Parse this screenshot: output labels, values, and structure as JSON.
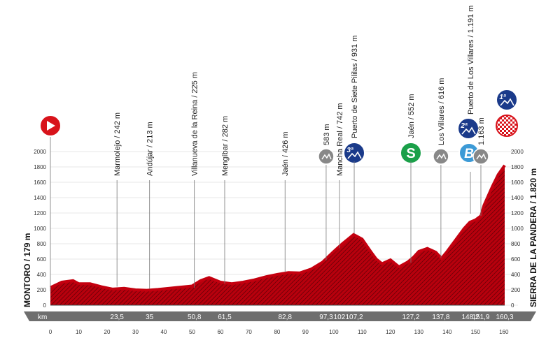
{
  "chart_data": {
    "type": "area",
    "start_label": "MONTORO / 179 m",
    "finish_label": "SIERRA DE LA PANDERA / 1.820 m",
    "x_axis_label": "km",
    "xlim": [
      0,
      160.3
    ],
    "ylim": [
      0,
      2000
    ],
    "y_ticks": [
      0,
      200,
      400,
      600,
      800,
      1000,
      1200,
      1400,
      1600,
      1800,
      2000
    ],
    "x_ticks": [
      0,
      10,
      20,
      30,
      40,
      50,
      60,
      70,
      80,
      90,
      100,
      110,
      120,
      130,
      140,
      150,
      160
    ],
    "km_markers": [
      "23,5",
      "35",
      "50,8",
      "61,5",
      "82,8",
      "97,3",
      "102",
      "107,2",
      "127,2",
      "137,8",
      "148,2",
      "151,9",
      "160,3"
    ],
    "profile": {
      "x": [
        0,
        4,
        8,
        10,
        14,
        18,
        22,
        26,
        30,
        34,
        38,
        42,
        46,
        50,
        53,
        56,
        60,
        64,
        68,
        72,
        76,
        80,
        84,
        88,
        92,
        96,
        100,
        103,
        105,
        107,
        110,
        113,
        115,
        117,
        120,
        123,
        126,
        128,
        130,
        133,
        136,
        138,
        140,
        143,
        146,
        148,
        150,
        151.9,
        153,
        156,
        158,
        160.3
      ],
      "y": [
        230,
        300,
        320,
        280,
        280,
        240,
        210,
        220,
        200,
        195,
        205,
        220,
        235,
        250,
        320,
        360,
        300,
        280,
        300,
        330,
        370,
        400,
        425,
        420,
        470,
        560,
        700,
        800,
        860,
        920,
        860,
        700,
        600,
        540,
        590,
        500,
        560,
        620,
        700,
        740,
        690,
        610,
        700,
        850,
        1000,
        1080,
        1110,
        1163,
        1300,
        1550,
        1700,
        1820
      ]
    },
    "points": [
      {
        "name": "Montoro",
        "km": 0,
        "alt": 179,
        "icon": "start-icon"
      },
      {
        "name": "Marmolejo",
        "km": 23.5,
        "alt": 242,
        "label": "Marmolejo / 242 m"
      },
      {
        "name": "Andújar",
        "km": 35,
        "alt": 213,
        "label": "Andújar / 213 m"
      },
      {
        "name": "Villanueva de la Reina",
        "km": 50.8,
        "alt": 225,
        "label": "Villanueva de la Reina / 225 m"
      },
      {
        "name": "Mengíbar",
        "km": 61.5,
        "alt": 282,
        "label": "Mengíbar / 282 m"
      },
      {
        "name": "Jaén",
        "km": 82.8,
        "alt": 426,
        "label": "Jaén / 426 m"
      },
      {
        "name": "",
        "km": 97.3,
        "alt": 583,
        "label": "583 m",
        "icon": "climb-icon"
      },
      {
        "name": "Mancha Real",
        "km": 102,
        "alt": 742,
        "label": "Mancha Real / 742 m"
      },
      {
        "name": "Puerto de Siete Pililas",
        "km": 107.2,
        "alt": 931,
        "label": "Puerto de Siete Pililas / 931 m",
        "icon": "category-icon",
        "category": "3ª"
      },
      {
        "name": "Jaén",
        "km": 127.2,
        "alt": 552,
        "label": "Jaén / 552 m",
        "icon": "sprint-icon",
        "symbol": "S"
      },
      {
        "name": "Los Villares",
        "km": 137.8,
        "alt": 616,
        "label": "Los Villares / 616 m",
        "icon": "climb-icon"
      },
      {
        "name": "Puerto de Los Villares",
        "km": 148.2,
        "alt": 1191,
        "label": "Puerto de Los Villares / 1.191 m",
        "icon": "category-icon",
        "category": "2ª",
        "symbol": "B"
      },
      {
        "name": "",
        "km": 151.9,
        "alt": 1163,
        "label": "1.163 m",
        "icon": "climb-icon"
      },
      {
        "name": "Sierra de La Pandera",
        "km": 160.3,
        "alt": 1820,
        "icon": "category-icon",
        "category": "1ª"
      }
    ],
    "colors": {
      "profile": "#c4000f",
      "profile_dark": "#8a000a",
      "category_badge": "#1a3a8a",
      "sprint_badge": "#1aa049",
      "bonus_badge": "#3c9ad6",
      "start_badge": "#d8131b",
      "climb_badge": "#888888",
      "km_bar": "#6e6e6e"
    }
  }
}
